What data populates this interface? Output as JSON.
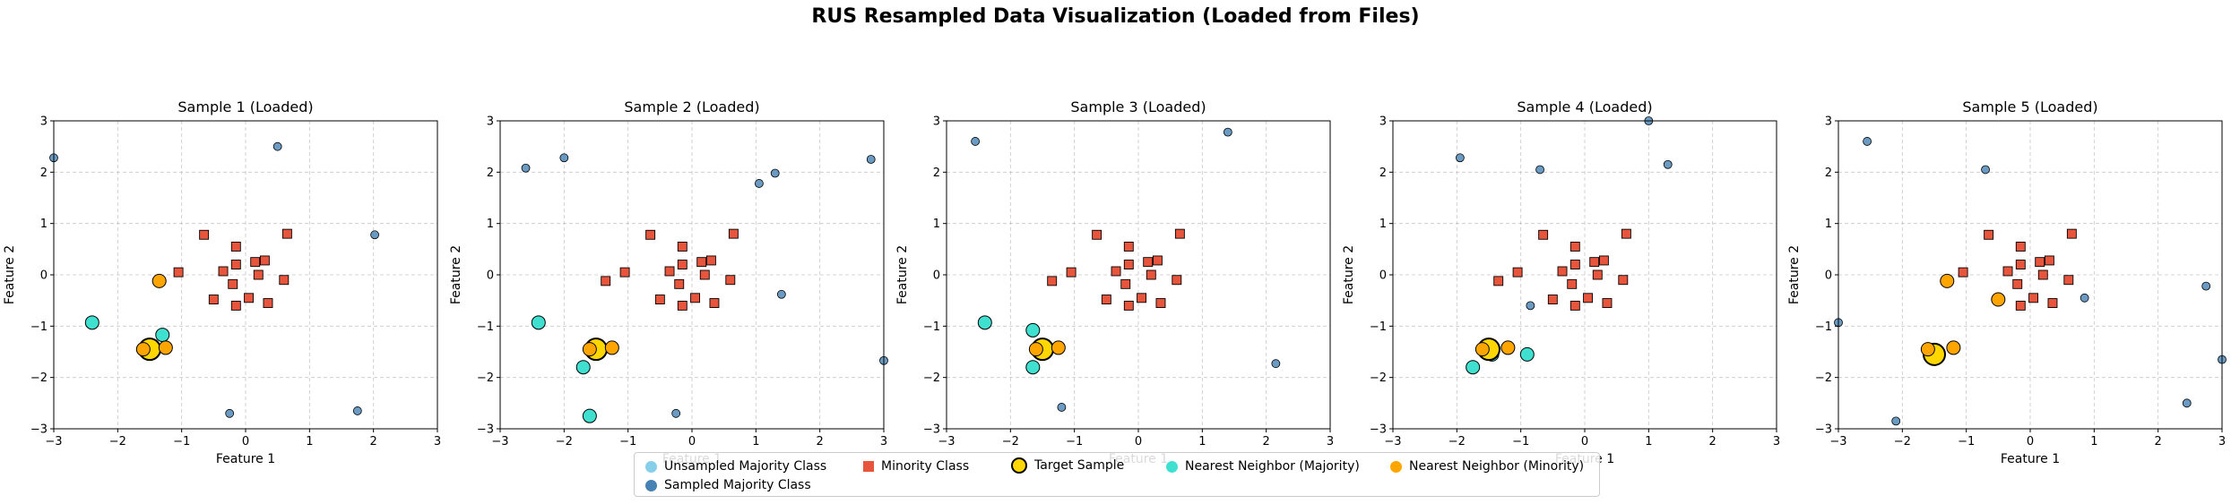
{
  "figure": {
    "title": "RUS Resampled Data Visualization (Loaded from Files)"
  },
  "colors": {
    "unsampled_majority": "#87ceeb",
    "sampled_majority": "#4682b4",
    "minority": "#e8553d",
    "target": "#ffd700",
    "nn_majority": "#40e0d0",
    "nn_minority": "#ffa500"
  },
  "legend": {
    "items": [
      {
        "label": "Unsampled Majority Class",
        "marker": "circle",
        "color": "#87ceeb"
      },
      {
        "label": "Sampled Majority Class",
        "marker": "circle",
        "color": "#4682b4"
      },
      {
        "label": "Minority Class",
        "marker": "square",
        "color": "#e8553d"
      },
      {
        "label": "Target Sample",
        "marker": "target",
        "color": "#ffd700"
      },
      {
        "label": "Nearest Neighbor (Majority)",
        "marker": "circle",
        "color": "#40e0d0"
      },
      {
        "label": "Nearest Neighbor (Minority)",
        "marker": "circle",
        "color": "#ffa500"
      }
    ]
  },
  "chart_data": [
    {
      "type": "scatter",
      "title": "Sample 1 (Loaded)",
      "xlabel": "Feature 1",
      "ylabel": "Feature 2",
      "xlim": [
        -3,
        3
      ],
      "ylim": [
        -3,
        3
      ],
      "xticks": [
        -3,
        -2,
        -1,
        0,
        1,
        2,
        3
      ],
      "yticks": [
        -3,
        -2,
        -1,
        0,
        1,
        2,
        3
      ],
      "grid": true,
      "sampled_majority": [
        [
          -3.0,
          2.28
        ],
        [
          0.5,
          2.5
        ],
        [
          2.02,
          0.78
        ],
        [
          -0.25,
          -2.7
        ],
        [
          1.75,
          -2.65
        ]
      ],
      "minority": [
        [
          -0.65,
          0.78
        ],
        [
          -0.15,
          0.55
        ],
        [
          0.65,
          0.8
        ],
        [
          -1.05,
          0.05
        ],
        [
          -0.35,
          0.07
        ],
        [
          -0.15,
          0.2
        ],
        [
          0.15,
          0.25
        ],
        [
          0.3,
          0.28
        ],
        [
          0.2,
          0.0
        ],
        [
          -0.2,
          -0.18
        ],
        [
          0.6,
          -0.1
        ],
        [
          -0.5,
          -0.48
        ],
        [
          0.05,
          -0.45
        ],
        [
          0.35,
          -0.55
        ],
        [
          -0.15,
          -0.6
        ]
      ],
      "target": [
        [
          -1.5,
          -1.45
        ]
      ],
      "nn_majority": [
        [
          -2.4,
          -0.93
        ],
        [
          -1.3,
          -1.17
        ],
        [
          -1.6,
          -1.45
        ]
      ],
      "nn_minority": [
        [
          -1.35,
          -0.12
        ],
        [
          -1.25,
          -1.42
        ],
        [
          -1.6,
          -1.45
        ]
      ]
    },
    {
      "type": "scatter",
      "title": "Sample 2 (Loaded)",
      "xlabel": "Feature 1",
      "ylabel": "Feature 2",
      "xlim": [
        -3,
        3
      ],
      "ylim": [
        -3,
        3
      ],
      "xticks": [
        -3,
        -2,
        -1,
        0,
        1,
        2,
        3
      ],
      "yticks": [
        -3,
        -2,
        -1,
        0,
        1,
        2,
        3
      ],
      "grid": true,
      "sampled_majority": [
        [
          -2.6,
          2.08
        ],
        [
          -2.0,
          2.28
        ],
        [
          1.05,
          1.78
        ],
        [
          1.3,
          1.98
        ],
        [
          2.8,
          2.25
        ],
        [
          1.4,
          -0.38
        ],
        [
          3.0,
          -1.67
        ],
        [
          -0.25,
          -2.7
        ]
      ],
      "minority": [
        [
          -0.65,
          0.78
        ],
        [
          -0.15,
          0.55
        ],
        [
          0.65,
          0.8
        ],
        [
          -1.05,
          0.05
        ],
        [
          -0.35,
          0.07
        ],
        [
          -0.15,
          0.2
        ],
        [
          0.15,
          0.25
        ],
        [
          0.3,
          0.28
        ],
        [
          0.2,
          0.0
        ],
        [
          -0.2,
          -0.18
        ],
        [
          0.6,
          -0.1
        ],
        [
          -0.5,
          -0.48
        ],
        [
          0.05,
          -0.45
        ],
        [
          0.35,
          -0.55
        ],
        [
          -0.15,
          -0.6
        ],
        [
          -1.35,
          -0.12
        ]
      ],
      "target": [
        [
          -1.5,
          -1.45
        ]
      ],
      "nn_majority": [
        [
          -2.4,
          -0.93
        ],
        [
          -1.7,
          -1.8
        ],
        [
          -1.6,
          -2.75
        ]
      ],
      "nn_minority": [
        [
          -1.6,
          -1.45
        ],
        [
          -1.25,
          -1.42
        ]
      ]
    },
    {
      "type": "scatter",
      "title": "Sample 3 (Loaded)",
      "xlabel": "Feature 1",
      "ylabel": "Feature 2",
      "xlim": [
        -3,
        3
      ],
      "ylim": [
        -3,
        3
      ],
      "xticks": [
        -3,
        -2,
        -1,
        0,
        1,
        2,
        3
      ],
      "yticks": [
        -3,
        -2,
        -1,
        0,
        1,
        2,
        3
      ],
      "grid": true,
      "sampled_majority": [
        [
          -2.55,
          2.6
        ],
        [
          1.4,
          2.78
        ],
        [
          2.15,
          -1.73
        ],
        [
          -1.2,
          -2.58
        ]
      ],
      "minority": [
        [
          -0.65,
          0.78
        ],
        [
          -0.15,
          0.55
        ],
        [
          0.65,
          0.8
        ],
        [
          -1.05,
          0.05
        ],
        [
          -0.35,
          0.07
        ],
        [
          -0.15,
          0.2
        ],
        [
          0.15,
          0.25
        ],
        [
          0.3,
          0.28
        ],
        [
          0.2,
          0.0
        ],
        [
          -0.2,
          -0.18
        ],
        [
          0.6,
          -0.1
        ],
        [
          -0.5,
          -0.48
        ],
        [
          0.05,
          -0.45
        ],
        [
          0.35,
          -0.55
        ],
        [
          -0.15,
          -0.6
        ],
        [
          -1.35,
          -0.12
        ]
      ],
      "target": [
        [
          -1.5,
          -1.45
        ]
      ],
      "nn_majority": [
        [
          -2.4,
          -0.93
        ],
        [
          -1.65,
          -1.08
        ],
        [
          -1.65,
          -1.8
        ]
      ],
      "nn_minority": [
        [
          -1.6,
          -1.45
        ],
        [
          -1.25,
          -1.42
        ]
      ]
    },
    {
      "type": "scatter",
      "title": "Sample 4 (Loaded)",
      "xlabel": "Feature 1",
      "ylabel": "Feature 2",
      "xlim": [
        -3,
        3
      ],
      "ylim": [
        -3,
        3
      ],
      "xticks": [
        -3,
        -2,
        -1,
        0,
        1,
        2,
        3
      ],
      "yticks": [
        -3,
        -2,
        -1,
        0,
        1,
        2,
        3
      ],
      "grid": true,
      "sampled_majority": [
        [
          -1.95,
          2.28
        ],
        [
          -0.7,
          2.05
        ],
        [
          1.0,
          3.0
        ],
        [
          1.3,
          2.15
        ],
        [
          -0.85,
          -0.6
        ]
      ],
      "minority": [
        [
          -0.65,
          0.78
        ],
        [
          -0.15,
          0.55
        ],
        [
          0.65,
          0.8
        ],
        [
          -1.05,
          0.05
        ],
        [
          -0.35,
          0.07
        ],
        [
          -0.15,
          0.2
        ],
        [
          0.15,
          0.25
        ],
        [
          0.3,
          0.28
        ],
        [
          0.2,
          0.0
        ],
        [
          -0.2,
          -0.18
        ],
        [
          0.6,
          -0.1
        ],
        [
          -0.5,
          -0.48
        ],
        [
          0.05,
          -0.45
        ],
        [
          0.35,
          -0.55
        ],
        [
          -0.15,
          -0.6
        ],
        [
          -1.35,
          -0.12
        ]
      ],
      "target": [
        [
          -1.5,
          -1.45
        ]
      ],
      "nn_majority": [
        [
          -0.9,
          -1.55
        ],
        [
          -1.75,
          -1.8
        ],
        [
          -1.45,
          -1.55
        ]
      ],
      "nn_minority": [
        [
          -1.6,
          -1.45
        ],
        [
          -1.2,
          -1.42
        ]
      ]
    },
    {
      "type": "scatter",
      "title": "Sample 5 (Loaded)",
      "xlabel": "Feature 1",
      "ylabel": "Feature 2",
      "xlim": [
        -3,
        3
      ],
      "ylim": [
        -3,
        3
      ],
      "xticks": [
        -3,
        -2,
        -1,
        0,
        1,
        2,
        3
      ],
      "yticks": [
        -3,
        -2,
        -1,
        0,
        1,
        2,
        3
      ],
      "grid": true,
      "sampled_majority": [
        [
          -2.55,
          2.6
        ],
        [
          -0.7,
          2.05
        ],
        [
          -3.0,
          -0.93
        ],
        [
          0.85,
          -0.45
        ],
        [
          2.75,
          -0.22
        ],
        [
          3.0,
          -1.65
        ],
        [
          2.45,
          -2.5
        ],
        [
          -2.1,
          -2.85
        ]
      ],
      "minority": [
        [
          -0.65,
          0.78
        ],
        [
          -0.15,
          0.55
        ],
        [
          0.65,
          0.8
        ],
        [
          -1.05,
          0.05
        ],
        [
          -0.35,
          0.07
        ],
        [
          -0.15,
          0.2
        ],
        [
          0.15,
          0.25
        ],
        [
          0.3,
          0.28
        ],
        [
          0.2,
          0.0
        ],
        [
          -0.2,
          -0.18
        ],
        [
          0.6,
          -0.1
        ],
        [
          -0.5,
          -0.48
        ],
        [
          0.05,
          -0.45
        ],
        [
          0.35,
          -0.55
        ],
        [
          -0.15,
          -0.6
        ]
      ],
      "target": [
        [
          -1.5,
          -1.55
        ]
      ],
      "nn_majority": [
        [
          -1.45,
          -1.5
        ]
      ],
      "nn_minority": [
        [
          -1.3,
          -0.12
        ],
        [
          -0.5,
          -0.48
        ],
        [
          -1.2,
          -1.42
        ],
        [
          -1.6,
          -1.45
        ]
      ]
    }
  ]
}
